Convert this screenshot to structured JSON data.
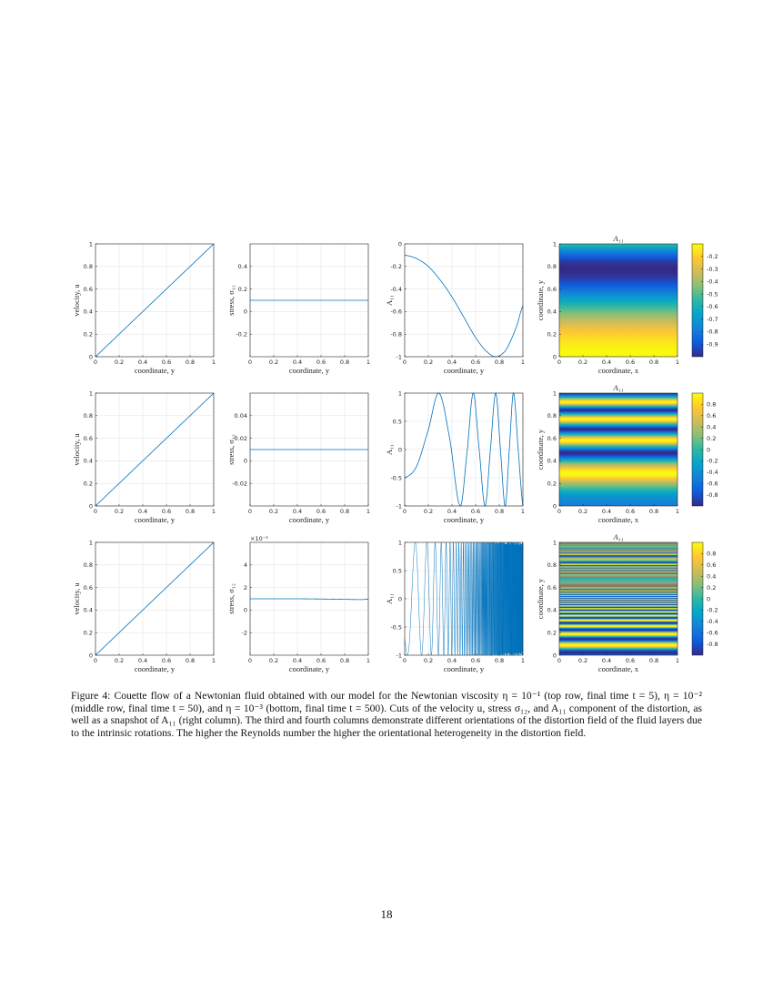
{
  "figure": {
    "caption": "Figure 4: Couette flow of a Newtonian fluid obtained with our model for the Newtonian viscosity η = 10⁻¹ (top row, final time t = 5), η = 10⁻² (middle row, final time t = 50), and η = 10⁻³ (bottom, final time t = 500). Cuts of the velocity u, stress σ₁₂, and A₁₁ component of the distortion, as well as a snapshot of A₁₁ (right column). The third and fourth columns demonstrate different orientations of the distortion field of the fluid layers due to the intrinsic rotations. The higher the Reynolds number the higher the orientational heterogeneity in the distortion field."
  },
  "page_number": "18",
  "colors": {
    "line": "#0072bd",
    "grid": "#e5e5e5",
    "axis": "#262626"
  },
  "chart_data": [
    {
      "type": "line",
      "xlabel": "coordinate, y",
      "ylabel": "velocity, u",
      "xlim": [
        0,
        1
      ],
      "ylim": [
        0,
        1
      ],
      "xticks": [
        0,
        0.2,
        0.4,
        0.6,
        0.8,
        1
      ],
      "yticks": [
        0,
        0.2,
        0.4,
        0.6,
        0.8,
        1
      ],
      "grid": true,
      "x": [
        0,
        1
      ],
      "y": [
        0,
        1
      ]
    },
    {
      "type": "line",
      "xlabel": "coordinate, y",
      "ylabel": "stress, σ₁₂",
      "xlim": [
        0,
        1
      ],
      "ylim": [
        -0.4,
        0.6
      ],
      "xticks": [
        0,
        0.2,
        0.4,
        0.6,
        0.8,
        1
      ],
      "yticks": [
        -0.2,
        0,
        0.2,
        0.4
      ],
      "grid": true,
      "x": [
        0,
        1
      ],
      "y": [
        0.1,
        0.1
      ]
    },
    {
      "type": "line",
      "xlabel": "coordinate, y",
      "ylabel": "A₁₁",
      "xlim": [
        0,
        1
      ],
      "ylim": [
        -1,
        0
      ],
      "xticks": [
        0,
        0.2,
        0.4,
        0.6,
        0.8,
        1
      ],
      "yticks": [
        -1,
        -0.8,
        -0.6,
        -0.4,
        -0.2,
        0
      ],
      "grid": true,
      "x": [
        0,
        0.1,
        0.2,
        0.3,
        0.4,
        0.5,
        0.6,
        0.7,
        0.78,
        0.85,
        0.9,
        0.95,
        1
      ],
      "y": [
        -0.1,
        -0.13,
        -0.2,
        -0.32,
        -0.47,
        -0.65,
        -0.83,
        -0.96,
        -1,
        -0.95,
        -0.85,
        -0.72,
        -0.55
      ]
    },
    {
      "type": "heatmap",
      "title": "A₁₁",
      "xlabel": "coordinate, x",
      "ylabel": "coordinate, y",
      "xlim": [
        0,
        1
      ],
      "ylim": [
        0,
        1
      ],
      "xticks": [
        0,
        0.2,
        0.4,
        0.6,
        0.8,
        1
      ],
      "yticks": [
        0,
        0.2,
        0.4,
        0.6,
        0.8,
        1
      ],
      "clim": [
        -1,
        -0.1
      ],
      "cticks": [
        -0.9,
        -0.8,
        -0.7,
        -0.6,
        -0.5,
        -0.4,
        -0.3,
        -0.2
      ],
      "colormap": "parula",
      "y": [
        0,
        0.1,
        0.2,
        0.3,
        0.4,
        0.5,
        0.6,
        0.7,
        0.78,
        0.85,
        0.9,
        0.95,
        1
      ],
      "values": [
        -0.1,
        -0.13,
        -0.2,
        -0.32,
        -0.47,
        -0.65,
        -0.83,
        -0.96,
        -1,
        -0.95,
        -0.85,
        -0.72,
        -0.55
      ]
    },
    {
      "type": "line",
      "xlabel": "coordinate, y",
      "ylabel": "velocity, u",
      "xlim": [
        0,
        1
      ],
      "ylim": [
        0,
        1
      ],
      "xticks": [
        0,
        0.2,
        0.4,
        0.6,
        0.8,
        1
      ],
      "yticks": [
        0,
        0.2,
        0.4,
        0.6,
        0.8,
        1
      ],
      "grid": true,
      "x": [
        0,
        1
      ],
      "y": [
        0,
        1
      ]
    },
    {
      "type": "line",
      "xlabel": "coordinate, y",
      "ylabel": "stress, σ₁₂",
      "xlim": [
        0,
        1
      ],
      "ylim": [
        -0.04,
        0.06
      ],
      "xticks": [
        0,
        0.2,
        0.4,
        0.6,
        0.8,
        1
      ],
      "yticks": [
        -0.02,
        0,
        0.02,
        0.04
      ],
      "grid": true,
      "x": [
        0,
        1
      ],
      "y": [
        0.01,
        0.01
      ]
    },
    {
      "type": "line",
      "xlabel": "coordinate, y",
      "ylabel": "A₁₁",
      "xlim": [
        0,
        1
      ],
      "ylim": [
        -1,
        1
      ],
      "xticks": [
        0,
        0.2,
        0.4,
        0.6,
        0.8,
        1
      ],
      "yticks": [
        -1,
        -0.5,
        0,
        0.5,
        1
      ],
      "grid": true,
      "x": [
        0,
        0.1,
        0.2,
        0.29,
        0.38,
        0.47,
        0.53,
        0.58,
        0.63,
        0.68,
        0.725,
        0.77,
        0.81,
        0.85,
        0.885,
        0.92,
        0.96,
        1
      ],
      "y": [
        -0.5,
        -0.3,
        0.35,
        1,
        0.2,
        -1,
        0,
        1,
        0,
        -1,
        0,
        1,
        0,
        -1,
        0,
        1,
        0,
        -1
      ]
    },
    {
      "type": "heatmap",
      "title": "A₁₁",
      "xlabel": "coordinate, x",
      "ylabel": "coordinate, y",
      "xlim": [
        0,
        1
      ],
      "ylim": [
        0,
        1
      ],
      "xticks": [
        0,
        0.2,
        0.4,
        0.6,
        0.8,
        1
      ],
      "yticks": [
        0,
        0.2,
        0.4,
        0.6,
        0.8,
        1
      ],
      "clim": [
        -1,
        1
      ],
      "cticks": [
        -0.8,
        -0.6,
        -0.4,
        -0.2,
        0,
        0.2,
        0.4,
        0.6,
        0.8
      ],
      "colormap": "parula",
      "y": [
        0,
        0.1,
        0.2,
        0.29,
        0.38,
        0.47,
        0.53,
        0.58,
        0.63,
        0.68,
        0.725,
        0.77,
        0.81,
        0.85,
        0.885,
        0.92,
        0.96,
        1
      ],
      "values": [
        -0.5,
        -0.3,
        0.35,
        1,
        0.2,
        -1,
        0,
        1,
        0,
        -1,
        0,
        1,
        0,
        -1,
        0,
        1,
        0,
        -1
      ]
    },
    {
      "type": "line",
      "xlabel": "coordinate, y",
      "ylabel": "velocity, u",
      "xlim": [
        0,
        1
      ],
      "ylim": [
        0,
        1
      ],
      "xticks": [
        0,
        0.2,
        0.4,
        0.6,
        0.8,
        1
      ],
      "yticks": [
        0,
        0.2,
        0.4,
        0.6,
        0.8,
        1
      ],
      "grid": true,
      "x": [
        0,
        1
      ],
      "y": [
        0,
        1
      ]
    },
    {
      "type": "line",
      "xlabel": "coordinate, y",
      "ylabel": "stress, σ₁₂",
      "multiplier": "×10⁻³",
      "xlim": [
        0,
        1
      ],
      "ylim": [
        -4,
        6
      ],
      "xticks": [
        0,
        0.2,
        0.4,
        0.6,
        0.8,
        1
      ],
      "yticks": [
        -2,
        0,
        2,
        4
      ],
      "grid": true,
      "x": [
        0,
        0.2,
        0.4,
        0.6,
        0.8,
        0.95,
        1
      ],
      "y": [
        1,
        1,
        1,
        0.98,
        0.95,
        0.93,
        0.97
      ]
    },
    {
      "type": "line",
      "xlabel": "coordinate, y",
      "ylabel": "A₁₁",
      "xlim": [
        0,
        1
      ],
      "ylim": [
        -1,
        1
      ],
      "xticks": [
        0,
        0.2,
        0.4,
        0.6,
        0.8,
        1
      ],
      "yticks": [
        -1,
        -0.5,
        0,
        0.5,
        1
      ],
      "grid": true,
      "x": [
        0,
        0.09,
        0.15,
        0.2
      ],
      "y": [
        -0.7,
        1,
        -1,
        1
      ],
      "oscillation_range": [
        -1,
        1
      ]
    },
    {
      "type": "heatmap",
      "title": "A₁₁",
      "xlabel": "coordinate, x",
      "ylabel": "coordinate, y",
      "xlim": [
        0,
        1
      ],
      "ylim": [
        0,
        1
      ],
      "xticks": [
        0,
        0.2,
        0.4,
        0.6,
        0.8,
        1
      ],
      "yticks": [
        0,
        0.2,
        0.4,
        0.6,
        0.8,
        1
      ],
      "clim": [
        -1,
        1
      ],
      "cticks": [
        -0.8,
        -0.6,
        -0.4,
        -0.2,
        0,
        0.2,
        0.4,
        0.6,
        0.8
      ],
      "colormap": "parula",
      "y": [
        0,
        0.09,
        0.15,
        0.2
      ],
      "values": [
        -0.7,
        1,
        -1,
        1
      ]
    }
  ]
}
